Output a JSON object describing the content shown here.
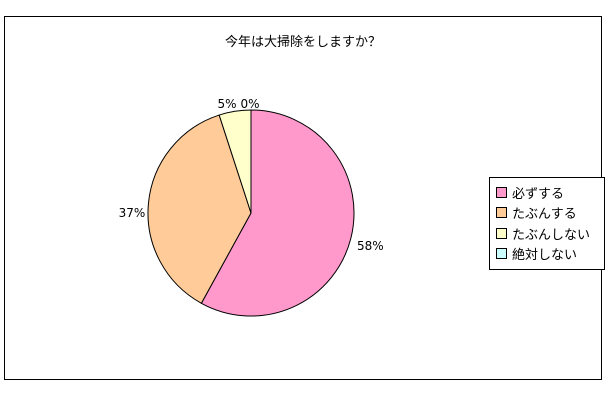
{
  "chart_data": {
    "type": "pie",
    "title": "今年は大掃除をしますか？",
    "categories": [
      "必ずする",
      "たぶんする",
      "たぶんしない",
      "絶対しない"
    ],
    "values": [
      58,
      37,
      5,
      0
    ],
    "data_labels": [
      "58%",
      "37%",
      "5%",
      "0%"
    ],
    "colors": [
      "#ff99cc",
      "#ffcc99",
      "#ffffcc",
      "#ccffff"
    ],
    "legend_position": "right"
  }
}
